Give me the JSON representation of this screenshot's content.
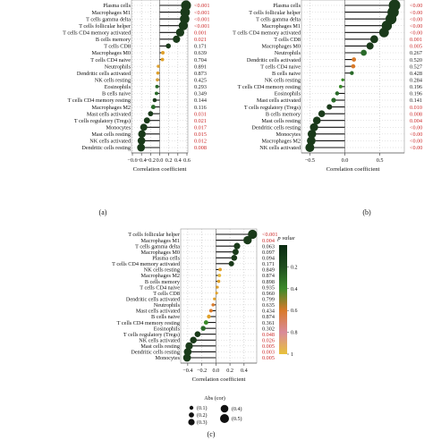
{
  "chart_data": [
    {
      "type": "scatter",
      "panel_label": "(a)",
      "xlabel": "Correlation coefficient",
      "xlim": [
        -0.62,
        0.62
      ],
      "xticks": [
        -0.6,
        -0.4,
        -0.2,
        0.0,
        0.2,
        0.4,
        0.6
      ],
      "xtick_labels": [
        "−0.6",
        "−0.4",
        "−0.2",
        "0.0",
        "0.2",
        "0.4",
        "0.6"
      ],
      "categories": [
        "Plasma cells",
        "Macrophages M1",
        "T cells gamma delta",
        "T cells follicular helper",
        "T cells CD4 memory activated",
        "B cells memory",
        "T cells CD8",
        "Macrophages M0",
        "T cells CD4 naive",
        "Neutrophils",
        "Dendritic cells activated",
        "NK cells resting",
        "Eosinophils",
        "B cells naive",
        "T cells CD4 memory resting",
        "Macrophages M2",
        "Mast cells activated",
        "T cells regulatory (Tregs)",
        "Monocytes",
        "Mast cells resting",
        "NK cells activated",
        "Dendritic cells resting"
      ],
      "values": [
        0.58,
        0.56,
        0.55,
        0.52,
        0.45,
        0.37,
        0.19,
        0.07,
        0.06,
        -0.03,
        -0.04,
        -0.05,
        -0.06,
        -0.07,
        -0.11,
        -0.14,
        -0.2,
        -0.28,
        -0.35,
        -0.39,
        -0.4,
        -0.41
      ],
      "p_values": [
        "<0.001",
        "<0.001",
        "<0.001",
        "<0.001",
        "0.001",
        "0.021",
        "0.171",
        "0.639",
        "0.704",
        "0.891",
        "0.873",
        "0.425",
        "0.293",
        "0.349",
        "0.144",
        "0.116",
        "0.031",
        "0.021",
        "0.017",
        "0.015",
        "0.012",
        "0.008"
      ],
      "p_colors": [
        "#1a3a1a",
        "#1a3a1a",
        "#1a3a1a",
        "#1a3a1a",
        "#1a3a1a",
        "#1a3a1a",
        "#1a3a1a",
        "#e0a12b",
        "#e0a12b",
        "#e0a12b",
        "#e0a12b",
        "#d9a03a",
        "#2a6a2a",
        "#2a6a2a",
        "#1a3a1a",
        "#2a6a2a",
        "#1a3a1a",
        "#1a3a1a",
        "#1a3a1a",
        "#1a3a1a",
        "#1a3a1a",
        "#1a3a1a"
      ],
      "grid": true
    },
    {
      "type": "scatter",
      "panel_label": "(b)",
      "xlabel": "Correlation coefficient",
      "xlim": [
        -0.62,
        0.85
      ],
      "xticks": [
        -0.5,
        0.0,
        0.5
      ],
      "xtick_labels": [
        "−0.5",
        "0.0",
        "0.5"
      ],
      "categories": [
        "Plasma cells",
        "T cells follicular helper",
        "T cells gamma delta",
        "Macrophages M1",
        "T cells CD4 memory activated",
        "T cells CD8",
        "Macrophages M0",
        "Neutrophils",
        "Dendritic cells activated",
        "T cells CD4 naive",
        "B cells naive",
        "NK cells resting",
        "T cells CD4 memory resting",
        "Eosinophils",
        "Mast cells activated",
        "T cells regulatory (Tregs)",
        "B cells memory",
        "Mast cells resting",
        "Dendritic cells resting",
        "Monocytes",
        "Macrophages M2",
        "NK cells activated"
      ],
      "values": [
        0.71,
        0.69,
        0.66,
        0.6,
        0.56,
        0.42,
        0.36,
        0.27,
        0.13,
        0.12,
        0.1,
        -0.03,
        -0.06,
        -0.11,
        -0.16,
        -0.22,
        -0.33,
        -0.4,
        -0.44,
        -0.47,
        -0.48,
        -0.5
      ],
      "p_values": [
        "<0.00",
        "<0.00",
        "<0.00",
        "<0.00",
        "<0.00",
        "0.001",
        "0.005",
        "0.267",
        "0.520",
        "0.527",
        "0.428",
        "0.284",
        "0.196",
        "0.196",
        "0.141",
        "0.010",
        "0.008",
        "0.004",
        "<0.00",
        "<0.00",
        "<0.00",
        "<0.00"
      ],
      "p_colors": [
        "#1a3a1a",
        "#1a3a1a",
        "#1a3a1a",
        "#1a3a1a",
        "#1a3a1a",
        "#1a3a1a",
        "#1a3a1a",
        "#2a6a2a",
        "#d97a2a",
        "#d97a2a",
        "#2a6a2a",
        "#3a8a2a",
        "#3a8a2a",
        "#2a6a2a",
        "#2a6a2a",
        "#1a3a1a",
        "#1a3a1a",
        "#1a3a1a",
        "#1a3a1a",
        "#1a3a1a",
        "#1a3a1a",
        "#1a3a1a"
      ],
      "grid": true
    },
    {
      "type": "scatter",
      "panel_label": "(c)",
      "xlabel": "Correlation coefficient",
      "xlim": [
        -0.5,
        0.58
      ],
      "xticks": [
        -0.4,
        -0.2,
        0.0,
        0.2,
        0.4
      ],
      "xtick_labels": [
        "−0.4",
        "−0.2",
        "0.0",
        "0.2",
        "0.4"
      ],
      "categories": [
        "T cells follicular helper",
        "Macrophages M1",
        "T cells gamma delta",
        "Macrophages M0",
        "Plasma cells",
        "T cells CD4 memory activated",
        "NK cells resting",
        "Macrophages M2",
        "B cells memory",
        "T cells CD4 naive",
        "T cells CD8",
        "Dendritic cells activated",
        "Neutrophils",
        "Mast cells activated",
        "B cells naive",
        "T cells CD4 memory resting",
        "Eosinophils",
        "T cells regulatory (Tregs)",
        "NK cells activated",
        "Mast cells resting",
        "Dendritic cells resting",
        "Monocytes"
      ],
      "values": [
        0.52,
        0.45,
        0.3,
        0.28,
        0.26,
        0.22,
        0.06,
        0.05,
        0.04,
        0.02,
        0.01,
        -0.02,
        -0.04,
        -0.07,
        -0.1,
        -0.14,
        -0.18,
        -0.26,
        -0.32,
        -0.38,
        -0.4,
        -0.41
      ],
      "p_values": [
        "<0.001",
        "0.004",
        "0.063",
        "0.097",
        "0.094",
        "0.171",
        "0.849",
        "0.874",
        "0.898",
        "0.935",
        "0.960",
        "0.799",
        "0.635",
        "0.434",
        "0.874",
        "0.361",
        "0.302",
        "0.048",
        "0.026",
        "0.005",
        "0.003",
        "0.005"
      ],
      "p_colors": [
        "#1a3a1a",
        "#1a3a1a",
        "#1a3a1a",
        "#1a3a1a",
        "#1a3a1a",
        "#1a3a1a",
        "#e0a12b",
        "#e8b83a",
        "#e0a12b",
        "#e0a12b",
        "#e0a12b",
        "#e0a12b",
        "#d97a2a",
        "#d97a2a",
        "#e0a12b",
        "#3a8a2a",
        "#2a6a2a",
        "#1a3a1a",
        "#1a3a1a",
        "#1a3a1a",
        "#1a3a1a",
        "#1a3a1a"
      ],
      "grid": true
    }
  ],
  "colorbar": {
    "title": "p value",
    "ticks": [
      "0.2",
      "0.4",
      "0.6",
      "0.8",
      "1"
    ],
    "colors": [
      "#0a2a12",
      "#1f4d1f",
      "#3b8a2a",
      "#d97a2a",
      "#d98a9a",
      "#e8c23a"
    ]
  },
  "size_legend": {
    "title": "Abs (cor)",
    "items": [
      "(0.1)",
      "(0.2)",
      "(0.3)",
      "(0.4)",
      "(0.5)"
    ]
  },
  "colors": {
    "significant_text": "#cc2a2a",
    "normal_text": "#222222"
  }
}
